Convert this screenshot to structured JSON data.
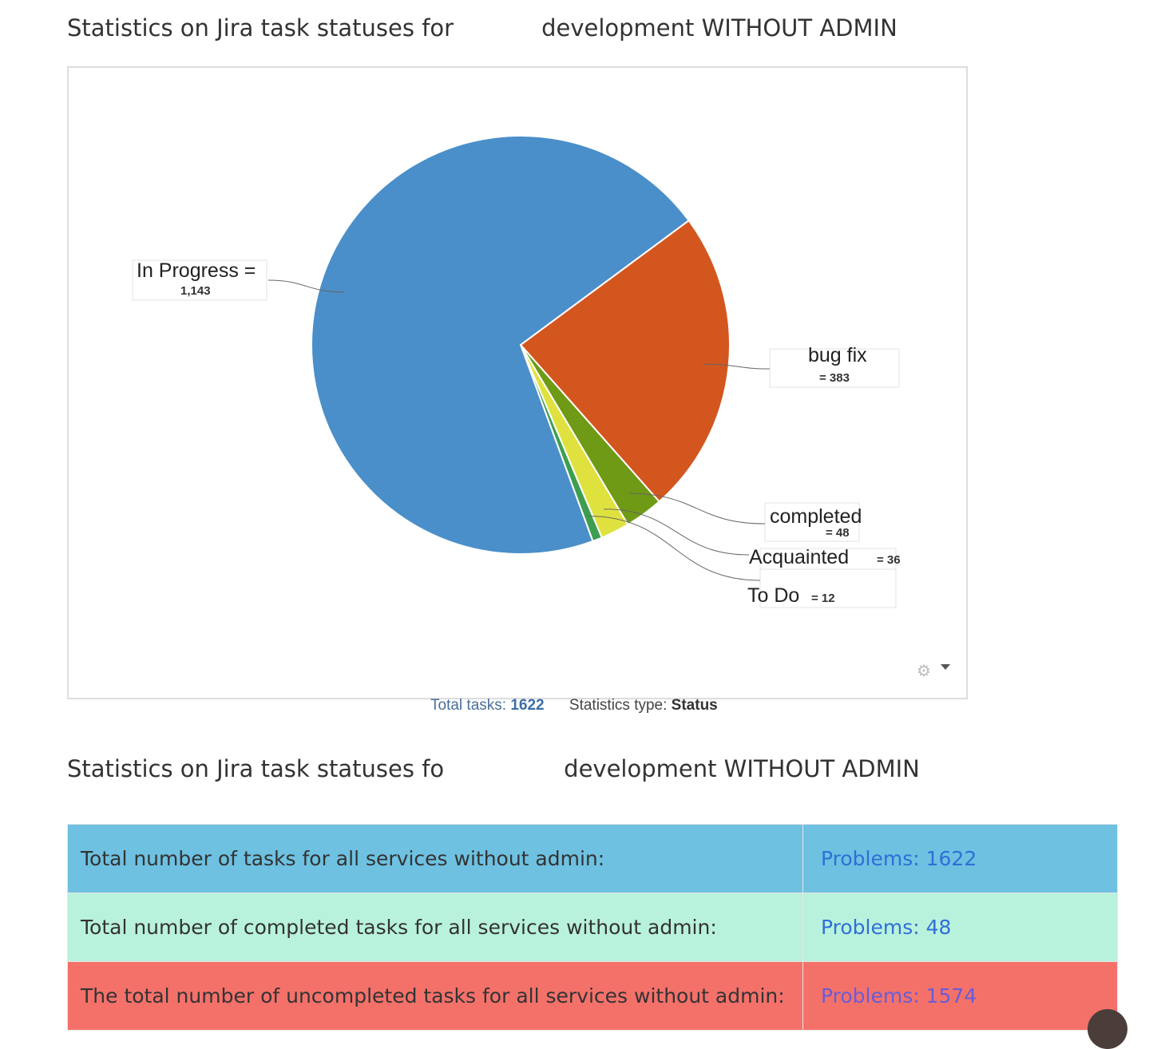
{
  "titles": {
    "chart_title_start": "Statistics on Jira task statuses for",
    "chart_title_end": "development WITHOUT ADMIN",
    "table_title_start": "Statistics on Jira task statuses fo",
    "table_title_end": "development WITHOUT ADMIN"
  },
  "chart_data": {
    "type": "pie",
    "slices": [
      {
        "label": "bug fix",
        "value": 383,
        "display": "= 383",
        "color": "#d4561f"
      },
      {
        "label": "completed",
        "value": 48,
        "display": "= 48",
        "color": "#6e9a15"
      },
      {
        "label": "Acquainted",
        "value": 36,
        "display": "= 36",
        "color": "#dfe23e"
      },
      {
        "label": "To Do",
        "value": 12,
        "display": "= 12",
        "color": "#3e9e50"
      },
      {
        "label": "In Progress",
        "value": 1143,
        "display": "1,143",
        "label_suffix": " =",
        "color": "#4a8fc9"
      }
    ],
    "total": 1622
  },
  "footer": {
    "total_label": "Total tasks:",
    "total_value": "1622",
    "type_label": "Statistics type:",
    "type_value": "Status"
  },
  "icons": {
    "settings": "gear-icon",
    "dropdown": "caret-down-icon"
  },
  "table": {
    "rows": [
      {
        "label": "Total number of tasks for all services without admin:",
        "value": "Problems: 1622",
        "bg": "#6ec1e1",
        "link_color": "#2f6fd8"
      },
      {
        "label": "Total number of completed tasks for all services without admin:",
        "value": "Problems: 48",
        "bg": "#b9f2dc",
        "link_color": "#2f6fd8"
      },
      {
        "label": "The total number of uncompleted tasks for all services without admin:",
        "value": "Problems: 1574",
        "bg": "#f4716a",
        "link_color": "#6a5cd6"
      }
    ]
  }
}
